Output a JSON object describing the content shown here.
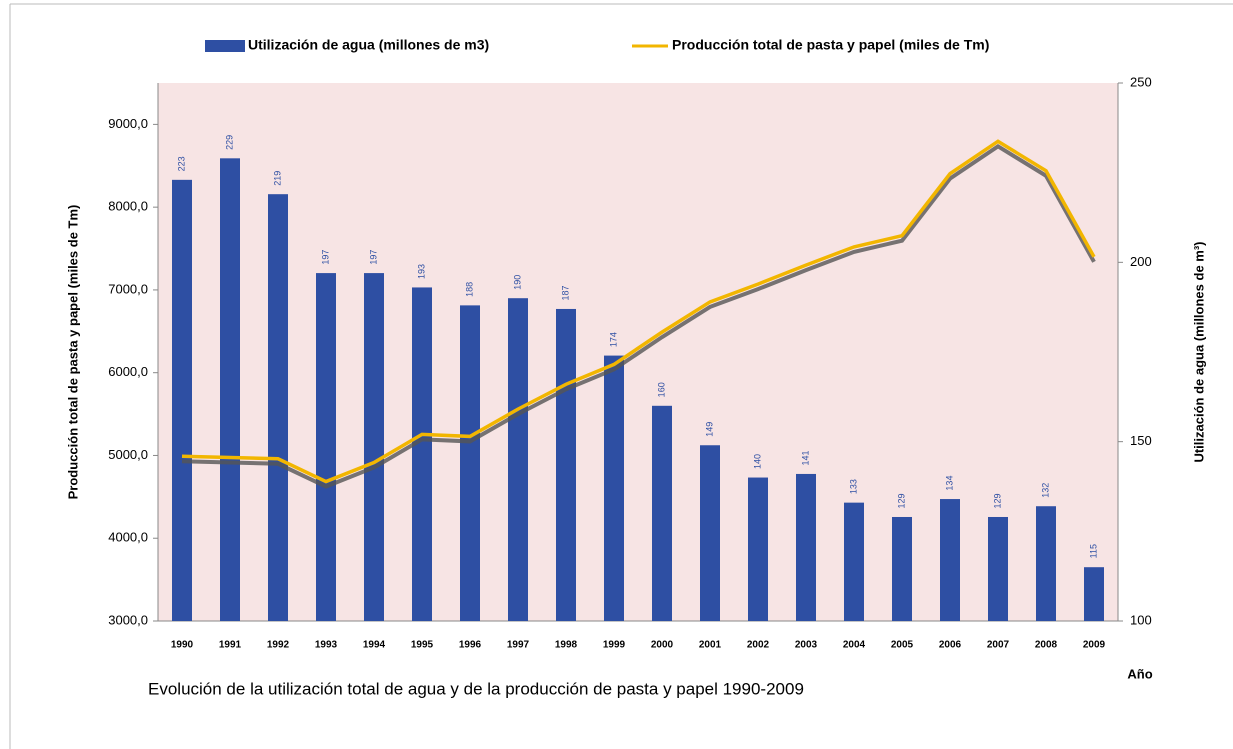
{
  "chart_data": {
    "type": "bar",
    "title": "Evolución de la utilización total de agua y de la producción de pasta y papel 1990-2009",
    "ylabel": "Producción total de pasta y papel (miles de Tm)",
    "y2label": "Utilización de agua (millones de m³)",
    "xlabel": "Año",
    "categories": [
      "1990",
      "1991",
      "1992",
      "1993",
      "1994",
      "1995",
      "1996",
      "1997",
      "1998",
      "1999",
      "2000",
      "2001",
      "2002",
      "2003",
      "2004",
      "2005",
      "2006",
      "2007",
      "2008",
      "2009"
    ],
    "series": [
      {
        "name": "Utilización de agua (millones de m3)",
        "type": "bar",
        "axis": "y2",
        "color": "#2e4fa3",
        "values": [
          223,
          229,
          219,
          197,
          197,
          193,
          188,
          190,
          187,
          174,
          160,
          149,
          140,
          141,
          133,
          129,
          134,
          129,
          132,
          115
        ]
      },
      {
        "name": "Producción total de pasta y papel (miles de Tm)",
        "type": "line",
        "color": "#f2b600",
        "values": [
          4990,
          4975,
          4960,
          4685,
          4915,
          5255,
          5230,
          5560,
          5860,
          6100,
          6490,
          6855,
          7070,
          7300,
          7520,
          7655,
          8405,
          8795,
          8440,
          7400
        ]
      }
    ],
    "ylim": [
      3000,
      9500
    ],
    "yticks": [
      {
        "value": 3000,
        "label": "3000,0"
      },
      {
        "value": 4000,
        "label": "4000,0"
      },
      {
        "value": 5000,
        "label": "5000,0"
      },
      {
        "value": 6000,
        "label": "6000,0"
      },
      {
        "value": 7000,
        "label": "7000,0"
      },
      {
        "value": 8000,
        "label": "8000,0"
      },
      {
        "value": 9000,
        "label": "9000,0"
      }
    ],
    "y2lim": [
      100,
      250
    ],
    "y2ticks": [
      100,
      150,
      200,
      250
    ],
    "legend": "top"
  }
}
